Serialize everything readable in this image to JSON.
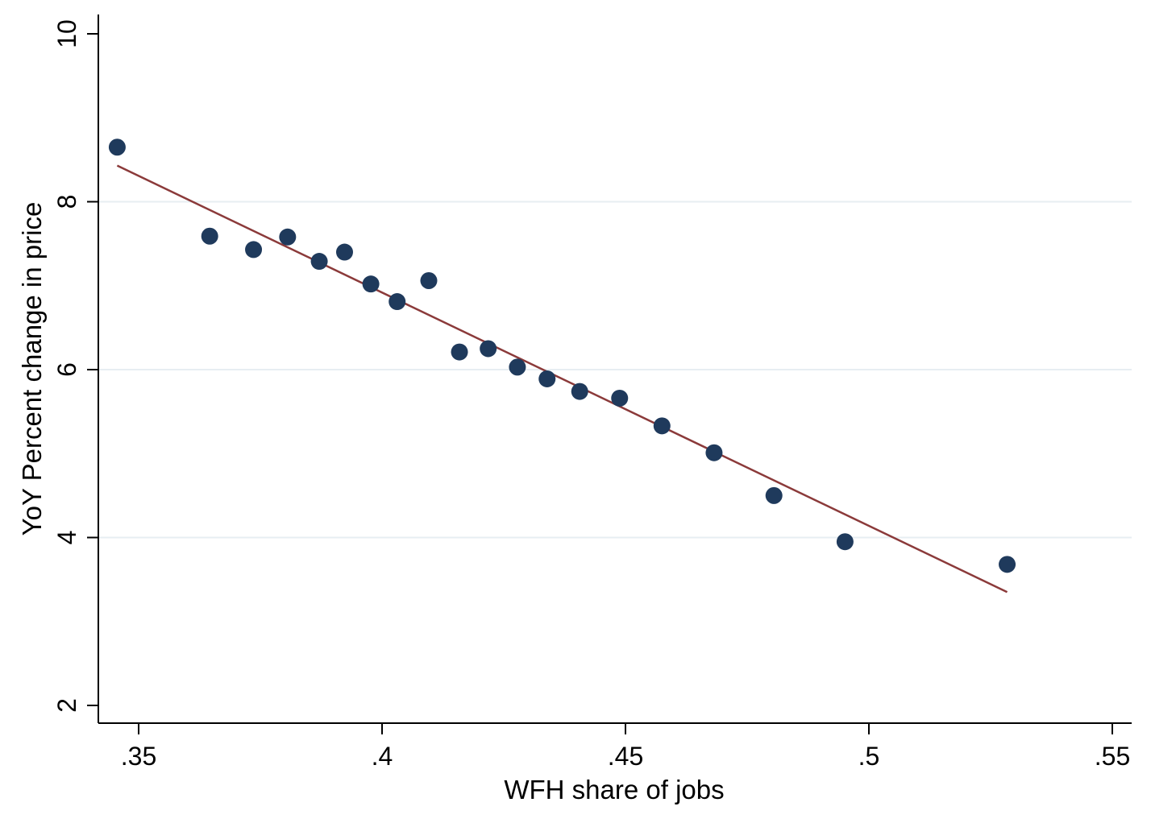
{
  "chart_data": {
    "type": "scatter",
    "xlabel": "WFH share of jobs",
    "ylabel": "YoY Percent change in price",
    "xlim": [
      0.345,
      0.554
    ],
    "ylim": [
      2,
      10
    ],
    "x_ticks": [
      0.35,
      0.4,
      0.45,
      0.5,
      0.55
    ],
    "x_tick_labels": [
      ".35",
      ".4",
      ".45",
      ".5",
      ".55"
    ],
    "y_ticks": [
      2,
      4,
      6,
      8,
      10
    ],
    "y_tick_labels": [
      "2",
      "4",
      "6",
      "8",
      "10"
    ],
    "grid": "horizontal",
    "series": [
      {
        "type": "scatter",
        "color": "#1f3a5c",
        "points": [
          [
            0.3456,
            8.65
          ],
          [
            0.3646,
            7.59
          ],
          [
            0.3736,
            7.43
          ],
          [
            0.3806,
            7.58
          ],
          [
            0.3871,
            7.29
          ],
          [
            0.3923,
            7.4
          ],
          [
            0.3977,
            7.02
          ],
          [
            0.4031,
            6.81
          ],
          [
            0.4096,
            7.06
          ],
          [
            0.4159,
            6.21
          ],
          [
            0.4218,
            6.25
          ],
          [
            0.4278,
            6.03
          ],
          [
            0.4339,
            5.89
          ],
          [
            0.4406,
            5.74
          ],
          [
            0.4488,
            5.66
          ],
          [
            0.4575,
            5.33
          ],
          [
            0.4682,
            5.01
          ],
          [
            0.4805,
            4.5
          ],
          [
            0.4951,
            3.95
          ],
          [
            0.5284,
            3.68
          ]
        ]
      },
      {
        "type": "line",
        "color": "#8b3a3a",
        "points": [
          [
            0.3456,
            8.43
          ],
          [
            0.5284,
            3.35
          ]
        ]
      }
    ]
  }
}
